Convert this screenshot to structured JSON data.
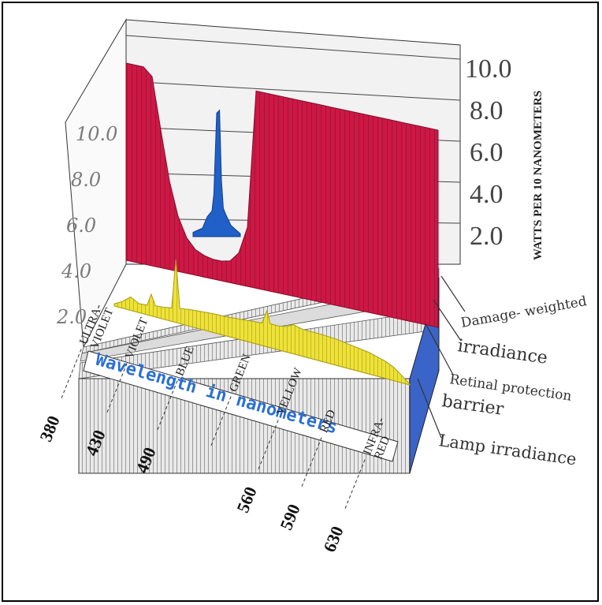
{
  "chart_data": {
    "type": "area",
    "title": "",
    "xlabel": "Wavelength in nanometers",
    "ylabel": "WATTS PER 10 NANOMETERS",
    "y_ticks_left": [
      "2.0",
      "4.0",
      "6.0",
      "8.0",
      "10.0"
    ],
    "y_ticks_right": [
      "2.0",
      "4.0",
      "6.0",
      "8.0",
      "10.0"
    ],
    "ylim": [
      0,
      10
    ],
    "x_range": [
      360,
      720
    ],
    "x_ticks": [
      {
        "label": "ULTRA-\nVIOLET",
        "value": "380"
      },
      {
        "label": "VIOLET",
        "value": "430"
      },
      {
        "label": "BLUE",
        "value": "490"
      },
      {
        "label": "GREEN",
        "value": ""
      },
      {
        "label": "YELLOW",
        "value": "560"
      },
      {
        "label": "RED",
        "value": "590"
      },
      {
        "label": "INFRA-\nRED",
        "value": "630"
      }
    ],
    "series": [
      {
        "name": "Damage-weighted irradiance",
        "color": "#cc1844",
        "x": [
          360,
          370,
          380,
          390,
          400,
          410,
          420,
          430,
          440,
          450,
          460,
          470,
          480,
          490,
          500,
          510,
          520,
          540,
          560,
          580,
          600,
          620,
          640,
          660,
          680,
          700,
          720
        ],
        "values": [
          10.0,
          10.0,
          10.0,
          9.6,
          7.0,
          4.5,
          2.8,
          1.8,
          1.3,
          1.1,
          1.0,
          1.0,
          1.1,
          1.6,
          3.0,
          10.0,
          10.0,
          10.0,
          10.0,
          10.0,
          10.0,
          10.0,
          10.0,
          10.0,
          10.0,
          10.0,
          10.0
        ]
      },
      {
        "name": "Retinal protection barrier",
        "color": "#2060c8",
        "x": [
          440,
          450,
          455,
          460,
          462,
          465,
          468,
          470,
          472,
          475,
          480,
          490
        ],
        "values": [
          0.3,
          0.6,
          1.4,
          1.8,
          3.0,
          8.7,
          8.9,
          4.0,
          2.0,
          1.5,
          0.8,
          0.2
        ]
      },
      {
        "name": "Lamp irradiance",
        "color": "#ece23a",
        "x": [
          360,
          370,
          380,
          390,
          400,
          405,
          410,
          420,
          430,
          435,
          440,
          450,
          460,
          480,
          500,
          520,
          540,
          546,
          550,
          560,
          570,
          578,
          590,
          610,
          630,
          650,
          670,
          690,
          700,
          710,
          720
        ],
        "values": [
          0.3,
          0.9,
          1.8,
          1.2,
          1.3,
          2.9,
          1.5,
          1.6,
          1.8,
          8.4,
          2.0,
          2.2,
          2.3,
          2.5,
          2.6,
          2.8,
          3.0,
          4.8,
          3.2,
          3.2,
          3.4,
          3.9,
          3.6,
          3.6,
          3.5,
          3.2,
          2.9,
          2.3,
          1.8,
          1.0,
          0.1
        ]
      }
    ],
    "legend": [
      {
        "text": "Damage- weighted",
        "size": 17
      },
      {
        "text": "irradiance",
        "size": 22
      },
      {
        "text": "Retinal protection",
        "size": 17
      },
      {
        "text": "barrier",
        "size": 22
      },
      {
        "text": "Lamp irradiance",
        "size": 21
      }
    ],
    "legend_position": "right",
    "grid": true
  }
}
